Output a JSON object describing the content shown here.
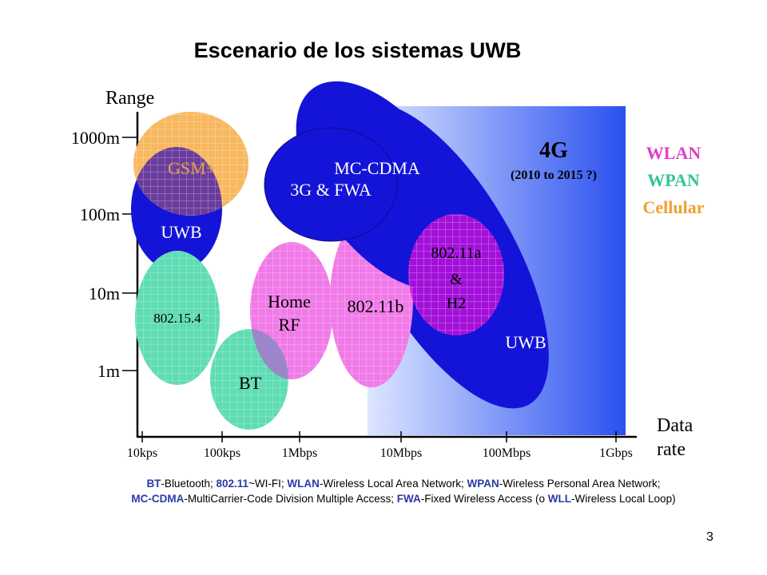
{
  "slide": {
    "title": "Escenario de los sistemas UWB",
    "page_number": "3"
  },
  "axes": {
    "y_title": "Range",
    "y_ticks": [
      "1000m",
      "100m",
      "10m",
      "1m"
    ],
    "x_title_line1": "Data",
    "x_title_line2": "rate",
    "x_ticks": [
      "10kps",
      "100kps",
      "1Mbps",
      "10Mbps",
      "100Mbps",
      "1Gbps"
    ]
  },
  "region_4g": {
    "title": "4G",
    "subtitle": "(2010 to 2015 ?)"
  },
  "legend": [
    {
      "label": "WLAN",
      "color": "#e23ec8"
    },
    {
      "label": "WPAN",
      "color": "#33c497"
    },
    {
      "label": "Cellular",
      "color": "#f0a030"
    }
  ],
  "ellipse_labels": {
    "gsm": "GSM+",
    "uwb_small": "UWB",
    "mc_cdma": "MC-CDMA",
    "fwa_line1": "3G & FWA",
    "a_line1": "802.11a",
    "a_line2": "&",
    "a_line3": "H2",
    "uwb_large": "UWB",
    "zigbee": "802.15.4",
    "home_line1": "Home",
    "home_line2": "RF",
    "b": "802.11b",
    "bt": "BT"
  },
  "colors": {
    "cellular": "#f8b860",
    "wpan": "#5fdcb4",
    "wlan": "#f07ae8",
    "uwb": "#1414d8",
    "region_start": "#dde6ff",
    "region_end": "#2a50f0"
  },
  "footnote": {
    "line1": [
      {
        "abbr": "BT",
        "text": "-Bluetooth; "
      },
      {
        "abbr": "802.11",
        "text": "~WI-FI; "
      },
      {
        "abbr": "WLAN",
        "text": "-Wireless Local Area Network; "
      },
      {
        "abbr": "WPAN",
        "text": "-Wireless Personal Area Network;"
      }
    ],
    "line2": [
      {
        "abbr": "MC-CDMA",
        "text": "-MultiCarrier-Code Division Multiple Access; "
      },
      {
        "abbr": "FWA",
        "text": "-Fixed Wireless Access (o "
      },
      {
        "abbr": "WLL",
        "text": "-Wireless Local Loop)"
      }
    ]
  }
}
